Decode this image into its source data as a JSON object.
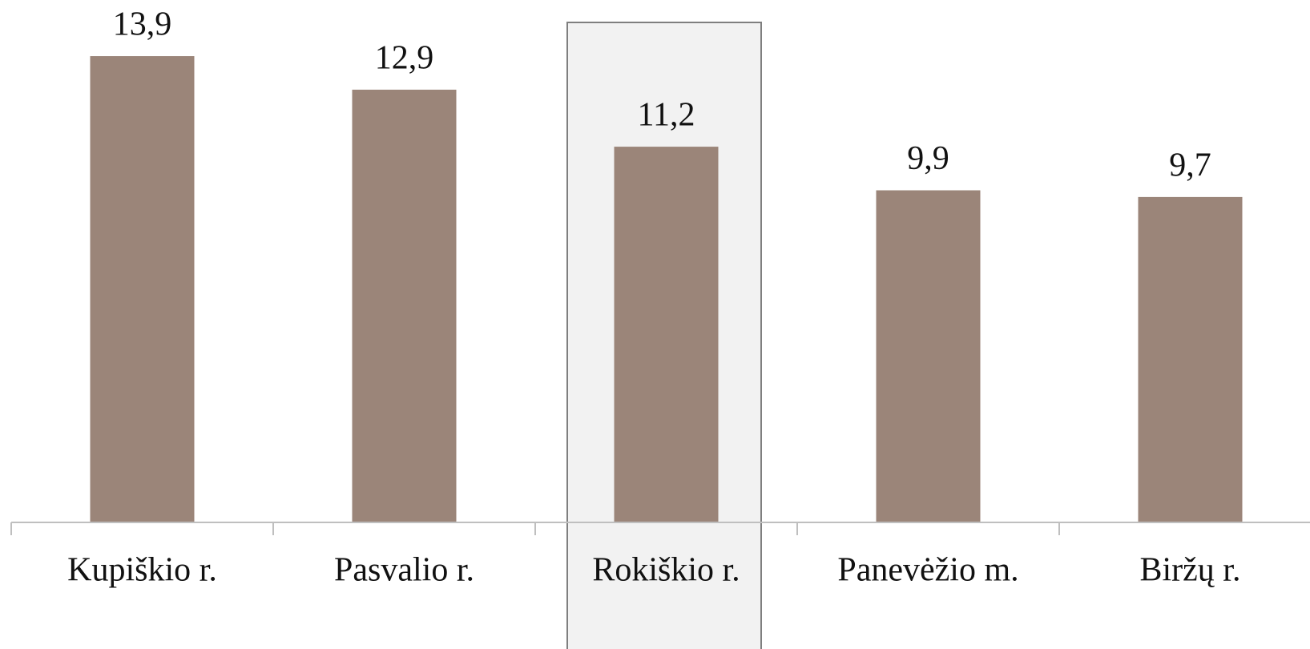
{
  "chart_data": {
    "type": "bar",
    "categories": [
      "Kupiškio r.",
      "Pasvalio r.",
      "Rokiškio r.",
      "Panevėžio m.",
      "Biržų r."
    ],
    "values": [
      13.9,
      12.9,
      11.2,
      9.9,
      9.7
    ],
    "value_labels": [
      "13,9",
      "12,9",
      "11,2",
      "9,9",
      "9,7"
    ],
    "color": "#9b8579",
    "ylim": [
      0,
      15
    ]
  }
}
